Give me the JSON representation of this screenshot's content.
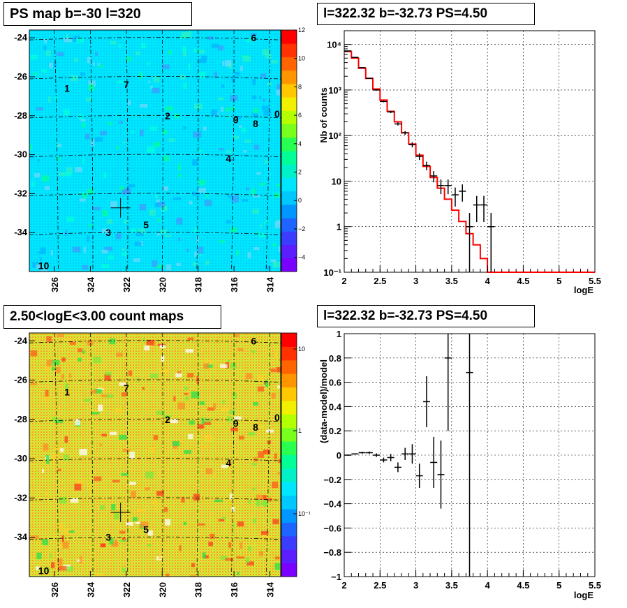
{
  "chart_data": [
    {
      "type": "heatmap",
      "title": "PS map b=-30 l=320",
      "x_ticks": [
        "326",
        "324",
        "322",
        "320",
        "318",
        "316",
        "314"
      ],
      "y_ticks": [
        "-24",
        "-26",
        "-28",
        "-30",
        "-32",
        "-34"
      ],
      "colorbar_ticks": [
        "12",
        "10",
        "8",
        "6",
        "4",
        "2",
        "0",
        "−2",
        "−4"
      ],
      "colorbar_range": [
        -5,
        12
      ],
      "background_value": 0,
      "sources": [
        {
          "label": "0",
          "l": 313.6,
          "b": -27.9
        },
        {
          "label": "1",
          "l": 325.3,
          "b": -26.6
        },
        {
          "label": "2",
          "l": 319.7,
          "b": -28.0
        },
        {
          "label": "3",
          "l": 323.0,
          "b": -34.0
        },
        {
          "label": "4",
          "l": 316.3,
          "b": -30.2
        },
        {
          "label": "5",
          "l": 320.9,
          "b": -33.6
        },
        {
          "label": "6",
          "l": 314.9,
          "b": -24.0
        },
        {
          "label": "7",
          "l": 322.0,
          "b": -26.4
        },
        {
          "label": "8",
          "l": 314.8,
          "b": -28.4
        },
        {
          "label": "9",
          "l": 315.9,
          "b": -28.2
        },
        {
          "label": "10",
          "l": 326.6,
          "b": -35.7
        }
      ],
      "marker": {
        "l": 322.32,
        "b": -32.73
      }
    },
    {
      "type": "line",
      "title": "l=322.32 b=-32.73 PS=4.50",
      "xlabel": "logE",
      "ylabel": "Nb of counts",
      "xlim": [
        2,
        5.5
      ],
      "ylim": [
        0.1,
        20000
      ],
      "yscale": "log",
      "grid": true,
      "x_ticks": [
        "2",
        "2.5",
        "3",
        "3.5",
        "4",
        "4.5",
        "5",
        "5.5"
      ],
      "y_ticks": [
        "10⁻¹",
        "1",
        "10",
        "10²",
        "10³",
        "10⁴"
      ],
      "series": [
        {
          "kind": "model-step",
          "color": "#ff0000",
          "x": [
            2.0,
            2.1,
            2.2,
            2.3,
            2.4,
            2.5,
            2.6,
            2.7,
            2.8,
            2.9,
            3.0,
            3.1,
            3.2,
            3.3,
            3.4,
            3.5,
            3.6,
            3.7,
            3.8,
            3.9,
            4.0,
            4.1,
            4.2,
            4.3,
            4.4,
            4.5,
            4.6,
            4.7,
            4.8,
            4.9,
            5.0,
            5.1,
            5.2,
            5.3,
            5.4
          ],
          "values": [
            7000,
            5000,
            3000,
            1800,
            1050,
            600,
            340,
            200,
            115,
            65,
            37,
            21,
            12,
            7,
            4,
            2.3,
            1.3,
            0.7,
            0.4,
            0.2,
            0.1,
            0.1,
            0.1,
            0.1,
            0.1,
            0.1,
            0.1,
            0.1,
            0.1,
            0.1,
            0.1,
            0.1,
            0.1,
            0.1,
            0.1
          ]
        },
        {
          "kind": "data-points",
          "color": "#000000",
          "x": [
            2.05,
            2.15,
            2.25,
            2.35,
            2.45,
            2.55,
            2.65,
            2.75,
            2.85,
            2.95,
            3.05,
            3.15,
            3.25,
            3.35,
            3.45,
            3.55,
            3.65,
            3.75,
            3.85,
            3.95,
            4.05
          ],
          "values": [
            7200,
            5200,
            3100,
            1800,
            1000,
            560,
            330,
            180,
            115,
            63,
            35,
            22,
            13,
            8,
            8,
            5,
            6,
            1,
            3,
            3,
            1
          ]
        }
      ]
    },
    {
      "type": "heatmap",
      "title": "2.50<logE<3.00 count maps",
      "x_ticks": [
        "326",
        "324",
        "322",
        "320",
        "318",
        "316",
        "314"
      ],
      "y_ticks": [
        "-24",
        "-26",
        "-28",
        "-30",
        "-32",
        "-34"
      ],
      "colorbar_ticks": [
        "10",
        "1",
        "10⁻¹"
      ],
      "colorbar_scale": "log",
      "sources": [
        {
          "label": "0",
          "l": 313.6,
          "b": -27.9
        },
        {
          "label": "1",
          "l": 325.3,
          "b": -26.6
        },
        {
          "label": "2",
          "l": 319.7,
          "b": -28.0
        },
        {
          "label": "3",
          "l": 323.0,
          "b": -34.0
        },
        {
          "label": "4",
          "l": 316.3,
          "b": -30.2
        },
        {
          "label": "5",
          "l": 320.9,
          "b": -33.6
        },
        {
          "label": "6",
          "l": 314.9,
          "b": -24.0
        },
        {
          "label": "7",
          "l": 322.0,
          "b": -26.4
        },
        {
          "label": "8",
          "l": 314.8,
          "b": -28.4
        },
        {
          "label": "9",
          "l": 315.9,
          "b": -28.2
        },
        {
          "label": "10",
          "l": 326.6,
          "b": -35.7
        }
      ],
      "marker": {
        "l": 322.32,
        "b": -32.73
      }
    },
    {
      "type": "scatter",
      "title": "l=322.32 b=-32.73 PS=4.50",
      "xlabel": "logE",
      "ylabel": "(data-model)/model",
      "xlim": [
        2,
        5.5
      ],
      "ylim": [
        -1,
        1
      ],
      "grid": true,
      "x_ticks": [
        "2",
        "2.5",
        "3",
        "3.5",
        "4",
        "4.5",
        "5",
        "5.5"
      ],
      "y_ticks": [
        "−1",
        "−0.8",
        "−0.6",
        "−0.4",
        "−0.2",
        "0",
        "0.2",
        "0.4",
        "0.6",
        "0.8",
        "1"
      ],
      "series": [
        {
          "kind": "data-points",
          "color": "#000000",
          "x": [
            2.05,
            2.15,
            2.25,
            2.35,
            2.45,
            2.55,
            2.65,
            2.75,
            2.85,
            2.95,
            3.05,
            3.15,
            3.25,
            3.35,
            3.45,
            3.75
          ],
          "values": [
            0.0,
            0.01,
            0.02,
            0.02,
            0.0,
            -0.04,
            -0.02,
            -0.1,
            0.01,
            0.01,
            -0.17,
            0.44,
            -0.06,
            -0.16,
            0.8,
            0.68
          ],
          "errors": [
            0.005,
            0.005,
            0.008,
            0.01,
            0.015,
            0.02,
            0.03,
            0.04,
            0.05,
            0.08,
            0.1,
            0.21,
            0.21,
            0.28,
            0.6,
            2.0
          ]
        }
      ]
    }
  ]
}
